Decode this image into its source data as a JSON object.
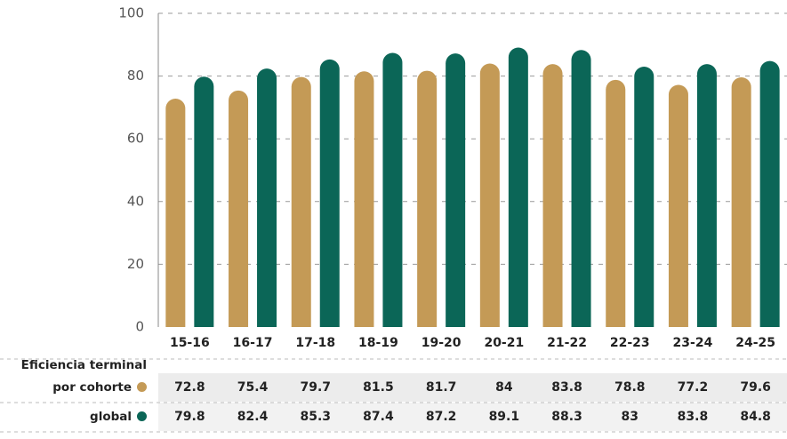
{
  "chart_data": {
    "type": "bar",
    "categories": [
      "15-16",
      "16-17",
      "17-18",
      "18-19",
      "19-20",
      "20-21",
      "21-22",
      "22-23",
      "23-24",
      "24-25"
    ],
    "series": [
      {
        "name": "Eficiencia terminal por cohorte",
        "color": "#c49a56",
        "values": [
          72.8,
          75.4,
          79.7,
          81.5,
          81.7,
          84,
          83.8,
          78.8,
          77.2,
          79.6
        ]
      },
      {
        "name": "global",
        "color": "#0b6657",
        "values": [
          79.8,
          82.4,
          85.3,
          87.4,
          87.2,
          89.1,
          88.3,
          83,
          83.8,
          84.8
        ]
      }
    ],
    "ylim": [
      0,
      100
    ],
    "yticks": [
      0,
      20,
      40,
      60,
      80,
      100
    ],
    "grid": true
  }
}
